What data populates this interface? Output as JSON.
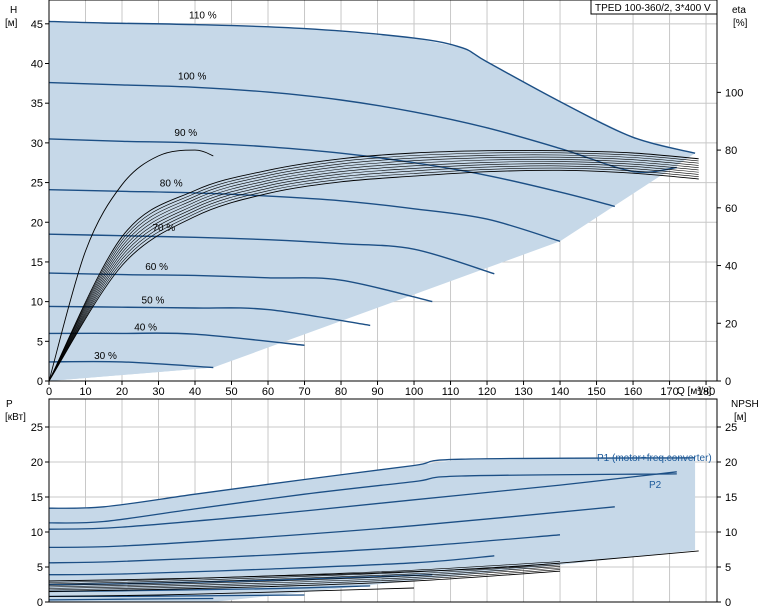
{
  "title": "TPED 100-360/2, 3*400 V",
  "colors": {
    "envelope": "#c6d8e8",
    "envelope_light": "#e6f1fb",
    "curve": "#1c4f85",
    "eta_curve": "#000000",
    "grid": "#c8c8c8",
    "axis": "#000000",
    "annotation": "#1c5a9a"
  },
  "top_chart": {
    "y_left_label": [
      "H",
      "[м]"
    ],
    "y_right_label": [
      "eta",
      "[%]"
    ],
    "x_label": "Q [м³/ч]",
    "x_ticks": [
      0,
      10,
      20,
      30,
      40,
      50,
      60,
      70,
      80,
      90,
      100,
      110,
      120,
      130,
      140,
      150,
      160,
      170,
      180
    ],
    "y_ticks": [
      0,
      5,
      10,
      15,
      20,
      25,
      30,
      35,
      40,
      45
    ],
    "eta_ticks": [
      0,
      20,
      40,
      60,
      80,
      100
    ]
  },
  "bottom_chart": {
    "y_left_label": [
      "P",
      "[кВт]"
    ],
    "y_right_label": [
      "NPSH",
      "[м]"
    ],
    "y_ticks": [
      0,
      5,
      10,
      15,
      20,
      25
    ],
    "npsh_ticks": [
      0,
      5,
      10,
      15,
      20,
      25
    ],
    "annotations": [
      "P1 (motor+freq.converter)",
      "P2"
    ]
  },
  "chart_data": [
    {
      "type": "line",
      "title": "TPED 100-360/2, 3*400 V",
      "xlabel": "Q [м³/ч]",
      "ylabel": "H [м]",
      "y2label": "eta [%]",
      "xlim": [
        0,
        183
      ],
      "ylim": [
        0,
        48
      ],
      "y2lim": [
        0,
        132
      ],
      "grid": true,
      "head_curves": [
        {
          "name": "110 %",
          "x": [
            0,
            15,
            40,
            70,
            100,
            113,
            120,
            140,
            160,
            177
          ],
          "y": [
            45.3,
            45.1,
            44.9,
            44.4,
            43.2,
            42.0,
            40.2,
            35.2,
            30.7,
            28.7
          ]
        },
        {
          "name": "100 %",
          "x": [
            0,
            20,
            40,
            60,
            80,
            100,
            120,
            140,
            160,
            172
          ],
          "y": [
            37.6,
            37.3,
            37.0,
            36.4,
            35.4,
            33.9,
            31.9,
            29.3,
            26.4,
            26.9
          ]
        },
        {
          "name": "90 %",
          "x": [
            0,
            20,
            40,
            60,
            80,
            100,
            120,
            140,
            155
          ],
          "y": [
            30.5,
            30.2,
            30.0,
            29.5,
            28.7,
            27.5,
            25.9,
            23.8,
            22.0
          ]
        },
        {
          "name": "80 %",
          "x": [
            0,
            20,
            40,
            60,
            80,
            100,
            120,
            140
          ],
          "y": [
            24.1,
            23.9,
            23.7,
            23.3,
            22.7,
            21.7,
            20.4,
            17.6
          ]
        },
        {
          "name": "70 %",
          "x": [
            0,
            20,
            40,
            60,
            80,
            100,
            122
          ],
          "y": [
            18.5,
            18.3,
            18.1,
            17.8,
            17.3,
            16.6,
            13.5
          ]
        },
        {
          "name": "60 %",
          "x": [
            0,
            20,
            40,
            60,
            80,
            105
          ],
          "y": [
            13.6,
            13.4,
            13.3,
            13.0,
            12.7,
            10.0
          ]
        },
        {
          "name": "50 %",
          "x": [
            0,
            20,
            40,
            60,
            88
          ],
          "y": [
            9.4,
            9.3,
            9.2,
            9.0,
            7.0
          ]
        },
        {
          "name": "40 %",
          "x": [
            0,
            20,
            40,
            70
          ],
          "y": [
            6.0,
            6.0,
            5.9,
            4.5
          ]
        },
        {
          "name": "30 %",
          "x": [
            0,
            20,
            45
          ],
          "y": [
            2.4,
            2.4,
            1.7
          ]
        }
      ],
      "eta_curves": [
        {
          "name": "",
          "x": [
            0,
            20,
            40,
            60,
            80,
            100,
            120,
            140,
            160,
            178
          ],
          "y": [
            0,
            40,
            57,
            65,
            69,
            71,
            72.5,
            73,
            72,
            70
          ]
        },
        {
          "name": "",
          "x": [
            0,
            20,
            40,
            60,
            80,
            100,
            120,
            140,
            160,
            178
          ],
          "y": [
            0,
            50,
            66,
            73,
            77,
            79,
            79.8,
            79.8,
            79,
            77
          ]
        },
        {
          "name": "",
          "x": [
            0,
            10,
            20,
            30,
            40,
            45
          ],
          "y": [
            0,
            45,
            68,
            78,
            80,
            78
          ]
        }
      ]
    },
    {
      "type": "line",
      "xlabel": "Q [м³/ч]",
      "ylabel": "P [кВт]",
      "y2label": "NPSH [м]",
      "xlim": [
        0,
        183
      ],
      "ylim": [
        0,
        29
      ],
      "y2lim": [
        0,
        29
      ],
      "grid": true,
      "power_curves": [
        {
          "name": "P1 (motor+freq.converter)",
          "x": [
            0,
            15,
            40,
            70,
            100,
            113,
            177
          ],
          "y": [
            13.4,
            13.6,
            15.4,
            17.5,
            19.5,
            20.4,
            20.6
          ]
        },
        {
          "name": "P2",
          "x": [
            0,
            15,
            40,
            70,
            100,
            113,
            172
          ],
          "y": [
            11.3,
            11.5,
            13.3,
            15.4,
            17.2,
            18.0,
            18.3
          ]
        },
        {
          "name": "",
          "x": [
            0,
            20,
            60,
            100,
            140,
            172
          ],
          "y": [
            10.4,
            10.7,
            12.5,
            14.6,
            16.7,
            18.6
          ]
        },
        {
          "name": "",
          "x": [
            0,
            20,
            60,
            100,
            155
          ],
          "y": [
            7.8,
            8.0,
            9.3,
            10.9,
            13.6
          ]
        },
        {
          "name": "",
          "x": [
            0,
            20,
            60,
            100,
            140
          ],
          "y": [
            5.6,
            5.8,
            6.7,
            7.9,
            9.6
          ]
        },
        {
          "name": "",
          "x": [
            0,
            20,
            60,
            100,
            122
          ],
          "y": [
            3.9,
            4.0,
            4.7,
            5.6,
            6.6
          ]
        },
        {
          "name": "",
          "x": [
            0,
            20,
            60,
            105
          ],
          "y": [
            2.5,
            2.6,
            3.1,
            3.9
          ]
        },
        {
          "name": "",
          "x": [
            0,
            20,
            60,
            88
          ],
          "y": [
            1.5,
            1.6,
            1.9,
            2.3
          ]
        },
        {
          "name": "",
          "x": [
            0,
            20,
            70
          ],
          "y": [
            0.8,
            0.8,
            1.0
          ]
        },
        {
          "name": "",
          "x": [
            0,
            20,
            45
          ],
          "y": [
            0.3,
            0.4,
            0.5
          ]
        }
      ],
      "npsh_curves": [
        {
          "name": "",
          "x": [
            0,
            40,
            80,
            120,
            150,
            178
          ],
          "y": [
            3.0,
            3.4,
            4.0,
            4.8,
            6.0,
            7.3
          ]
        },
        {
          "name": "",
          "x": [
            0,
            30,
            60,
            100,
            140
          ],
          "y": [
            1.5,
            1.8,
            2.2,
            3.0,
            4.4
          ]
        },
        {
          "name": "",
          "x": [
            0,
            30,
            60,
            100
          ],
          "y": [
            0.8,
            1.0,
            1.4,
            2.0
          ]
        }
      ]
    }
  ]
}
